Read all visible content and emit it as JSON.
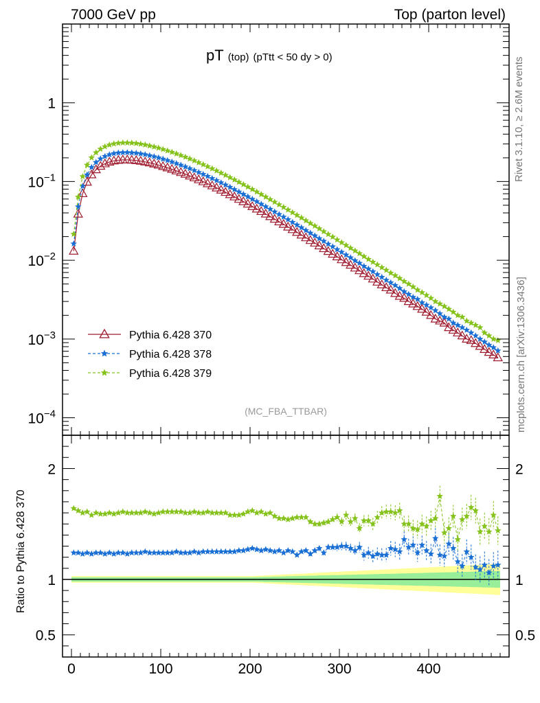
{
  "header": {
    "left": "7000 GeV pp",
    "right": "Top (parton level)"
  },
  "title": {
    "main": "pT",
    "sub1": "(top)",
    "sub2": "(pTtt < 50 dy > 0)"
  },
  "side_labels": {
    "rivet": "Rivet 3.1.10, ≥ 2.6M events",
    "mcplots": "mcplots.cern.ch [arXiv:1306.3436]"
  },
  "watermark": "(MC_FBA_TTBAR)",
  "ratio_ylabel": "Ratio to Pythia 6.428 370",
  "colors": {
    "s370": "#9e1a2e",
    "s378": "#1a6fd4",
    "s379": "#86c21c",
    "band_inner": "#99ee99",
    "band_outer": "#ffff99"
  },
  "chart_data": [
    {
      "type": "line",
      "panel": "main",
      "yscale": "log",
      "xlim": [
        -10,
        490
      ],
      "ylim": [
        6e-05,
        10
      ],
      "y_ticks": [
        "1",
        "10^-1",
        "10^-2",
        "10^-3",
        "10^-4"
      ],
      "legend_position": "lower-left",
      "x": [
        2.5,
        7.5,
        12.5,
        17.5,
        22.5,
        27.5,
        32.5,
        37.5,
        42.5,
        47.5,
        52.5,
        57.5,
        62.5,
        67.5,
        72.5,
        77.5,
        82.5,
        87.5,
        92.5,
        97.5,
        102.5,
        107.5,
        112.5,
        117.5,
        122.5,
        127.5,
        132.5,
        137.5,
        142.5,
        147.5,
        152.5,
        157.5,
        162.5,
        167.5,
        172.5,
        177.5,
        182.5,
        187.5,
        192.5,
        197.5,
        202.5,
        207.5,
        212.5,
        217.5,
        222.5,
        227.5,
        232.5,
        237.5,
        242.5,
        247.5,
        252.5,
        257.5,
        262.5,
        267.5,
        272.5,
        277.5,
        282.5,
        287.5,
        292.5,
        297.5,
        302.5,
        307.5,
        312.5,
        317.5,
        322.5,
        327.5,
        332.5,
        337.5,
        342.5,
        347.5,
        352.5,
        357.5,
        362.5,
        367.5,
        372.5,
        377.5,
        382.5,
        387.5,
        392.5,
        397.5,
        402.5,
        407.5,
        412.5,
        417.5,
        422.5,
        427.5,
        432.5,
        437.5,
        442.5,
        447.5,
        452.5,
        457.5,
        462.5,
        467.5,
        472.5,
        477.5
      ],
      "series": [
        {
          "name": "Pythia 6.428 370",
          "marker": "triangle-open",
          "linestyle": "solid",
          "values": [
            0.0131,
            0.0387,
            0.0704,
            0.0985,
            0.1222,
            0.1416,
            0.1569,
            0.1686,
            0.1772,
            0.1833,
            0.1868,
            0.1886,
            0.1888,
            0.1876,
            0.1854,
            0.1819,
            0.1778,
            0.1729,
            0.1677,
            0.162,
            0.1559,
            0.1497,
            0.1434,
            0.1369,
            0.1306,
            0.1243,
            0.118,
            0.1118,
            0.1057,
            0.0998,
            0.0941,
            0.0885,
            0.0832,
            0.0781,
            0.0731,
            0.0684,
            0.064,
            0.0597,
            0.0557,
            0.0519,
            0.0483,
            0.0449,
            0.0418,
            0.0388,
            0.036,
            0.0334,
            0.0309,
            0.0287,
            0.0265,
            0.0246,
            0.0227,
            0.021,
            0.0194,
            0.0179,
            0.0166,
            0.0153,
            0.0141,
            0.013,
            0.012,
            0.0111,
            0.0102,
            0.0094,
            0.0087,
            0.008,
            0.0074,
            0.0068,
            0.0063,
            0.0058,
            0.0053,
            0.0049,
            0.0045,
            0.0042,
            0.0038,
            0.0035,
            0.0033,
            0.003,
            0.0028,
            0.0026,
            0.0024,
            0.0022,
            0.002,
            0.0018,
            0.0017,
            0.0016,
            0.0014,
            0.0013,
            0.0012,
            0.0011,
            0.001,
            0.00096,
            0.00088,
            0.00081,
            0.00074,
            0.00068,
            0.00063,
            0.00058
          ]
        },
        {
          "name": "Pythia 6.428 378",
          "marker": "star",
          "linestyle": "dashed",
          "values": [
            0.0162,
            0.0479,
            0.0872,
            0.122,
            0.1514,
            0.1754,
            0.1944,
            0.2089,
            0.2195,
            0.227,
            0.2314,
            0.2336,
            0.2339,
            0.2324,
            0.2297,
            0.2254,
            0.2202,
            0.2142,
            0.2077,
            0.2006,
            0.1931,
            0.1854,
            0.1776,
            0.1696,
            0.1618,
            0.154,
            0.1462,
            0.1385,
            0.1309,
            0.1236,
            0.1166,
            0.1096,
            0.1031,
            0.0967,
            0.0906,
            0.0848,
            0.0792,
            0.074,
            0.069,
            0.0643,
            0.0598,
            0.0557,
            0.0517,
            0.048,
            0.0446,
            0.0413,
            0.0383,
            0.0355,
            0.0329,
            0.0304,
            0.0281,
            0.026,
            0.024,
            0.0222,
            0.0205,
            0.0189,
            0.0175,
            0.0161,
            0.0149,
            0.0137,
            0.0127,
            0.0117,
            0.0108,
            0.0099,
            0.0092,
            0.0084,
            0.0078,
            0.0072,
            0.0066,
            0.0061,
            0.0056,
            0.0052,
            0.0048,
            0.0044,
            0.004,
            0.0037,
            0.0034,
            0.0032,
            0.0029,
            0.0027,
            0.0025,
            0.0023,
            0.0021,
            0.0019,
            0.0018,
            0.0016,
            0.0015,
            0.0014,
            0.0013,
            0.0012,
            0.0011,
            0.001,
            0.00092,
            0.00084,
            0.00078,
            0.00071
          ]
        },
        {
          "name": "Pythia 6.428 379",
          "marker": "star",
          "linestyle": "dashed",
          "values": [
            0.0215,
            0.0637,
            0.1159,
            0.1621,
            0.2011,
            0.2331,
            0.2582,
            0.2775,
            0.2917,
            0.3017,
            0.3075,
            0.3104,
            0.3107,
            0.3087,
            0.3051,
            0.2994,
            0.2926,
            0.2846,
            0.2759,
            0.2665,
            0.2565,
            0.2463,
            0.2359,
            0.2254,
            0.215,
            0.2046,
            0.1942,
            0.184,
            0.174,
            0.1643,
            0.1548,
            0.1457,
            0.137,
            0.1285,
            0.1204,
            0.1126,
            0.1053,
            0.0983,
            0.0917,
            0.0854,
            0.0795,
            0.074,
            0.0687,
            0.0638,
            0.0592,
            0.0549,
            0.0509,
            0.0472,
            0.0437,
            0.0404,
            0.0374,
            0.0346,
            0.0319,
            0.0295,
            0.0273,
            0.0252,
            0.0232,
            0.0214,
            0.0198,
            0.0182,
            0.0168,
            0.0155,
            0.0143,
            0.0132,
            0.0122,
            0.0112,
            0.0103,
            0.0095,
            0.0088,
            0.0081,
            0.0075,
            0.0069,
            0.0064,
            0.0059,
            0.0054,
            0.005,
            0.0046,
            0.0042,
            0.0039,
            0.0036,
            0.0033,
            0.003,
            0.0028,
            0.0026,
            0.0024,
            0.0022,
            0.002,
            0.0019,
            0.0017,
            0.0016,
            0.0015,
            0.0014,
            0.0012,
            0.0011,
            0.001,
            0.00096
          ]
        }
      ]
    },
    {
      "type": "line",
      "panel": "ratio",
      "xlim": [
        -10,
        490
      ],
      "ylim": [
        0.3,
        2.3
      ],
      "ylabel": "Ratio to Pythia 6.428 370",
      "x_ticks": [
        0,
        100,
        200,
        300,
        400
      ],
      "y_ticks": [
        0.5,
        1,
        2
      ],
      "reference_line": 1,
      "uncertainty_band_inner_halfwidth": [
        0.02,
        0.02,
        0.02,
        0.02,
        0.02,
        0.02,
        0.02,
        0.02,
        0.02,
        0.02,
        0.02,
        0.02,
        0.02,
        0.02,
        0.02,
        0.02,
        0.02,
        0.02,
        0.02,
        0.02,
        0.02,
        0.02,
        0.02,
        0.02,
        0.02,
        0.02,
        0.02,
        0.02,
        0.02,
        0.02,
        0.02,
        0.02,
        0.02,
        0.02,
        0.02,
        0.02,
        0.02,
        0.02,
        0.02,
        0.02,
        0.02,
        0.021,
        0.022,
        0.023,
        0.024,
        0.025,
        0.026,
        0.027,
        0.028,
        0.029,
        0.03,
        0.031,
        0.032,
        0.033,
        0.034,
        0.035,
        0.036,
        0.037,
        0.038,
        0.039,
        0.04,
        0.041,
        0.042,
        0.043,
        0.044,
        0.045,
        0.046,
        0.047,
        0.048,
        0.049,
        0.05,
        0.051,
        0.052,
        0.053,
        0.054,
        0.055,
        0.056,
        0.057,
        0.058,
        0.059,
        0.06,
        0.061,
        0.062,
        0.063,
        0.064,
        0.065,
        0.066,
        0.067,
        0.068,
        0.069,
        0.07,
        0.071,
        0.072,
        0.073,
        0.074,
        0.075
      ],
      "uncertainty_band_outer_halfwidth": [
        0.03,
        0.03,
        0.03,
        0.03,
        0.03,
        0.03,
        0.03,
        0.03,
        0.03,
        0.03,
        0.03,
        0.03,
        0.03,
        0.03,
        0.03,
        0.03,
        0.03,
        0.03,
        0.03,
        0.03,
        0.03,
        0.03,
        0.03,
        0.03,
        0.03,
        0.03,
        0.03,
        0.03,
        0.03,
        0.03,
        0.03,
        0.03,
        0.03,
        0.03,
        0.03,
        0.03,
        0.03,
        0.03,
        0.03,
        0.03,
        0.03,
        0.032,
        0.034,
        0.036,
        0.038,
        0.04,
        0.042,
        0.044,
        0.046,
        0.048,
        0.05,
        0.052,
        0.054,
        0.056,
        0.058,
        0.06,
        0.062,
        0.064,
        0.066,
        0.068,
        0.07,
        0.072,
        0.074,
        0.076,
        0.078,
        0.08,
        0.082,
        0.084,
        0.086,
        0.088,
        0.09,
        0.092,
        0.094,
        0.096,
        0.098,
        0.1,
        0.102,
        0.104,
        0.106,
        0.108,
        0.11,
        0.112,
        0.114,
        0.116,
        0.118,
        0.12,
        0.122,
        0.124,
        0.126,
        0.128,
        0.13,
        0.132,
        0.134,
        0.136,
        0.138,
        0.14,
        0.142,
        0.144,
        0.146,
        0.148,
        0.15
      ],
      "series": [
        {
          "name": "Pythia 6.428 378",
          "values": [
            1.24,
            1.24,
            1.23,
            1.24,
            1.23,
            1.24,
            1.24,
            1.23,
            1.24,
            1.23,
            1.24,
            1.24,
            1.23,
            1.24,
            1.24,
            1.24,
            1.25,
            1.24,
            1.24,
            1.24,
            1.24,
            1.24,
            1.24,
            1.25,
            1.24,
            1.24,
            1.24,
            1.25,
            1.24,
            1.25,
            1.25,
            1.25,
            1.25,
            1.25,
            1.25,
            1.25,
            1.25,
            1.26,
            1.26,
            1.27,
            1.28,
            1.27,
            1.26,
            1.27,
            1.26,
            1.25,
            1.26,
            1.24,
            1.26,
            1.25,
            1.22,
            1.25,
            1.26,
            1.23,
            1.26,
            1.28,
            1.24,
            1.29,
            1.29,
            1.29,
            1.3,
            1.3,
            1.28,
            1.26,
            1.29,
            1.22,
            1.24,
            1.21,
            1.23,
            1.22,
            1.22,
            1.28,
            1.27,
            1.25,
            1.36,
            1.29,
            1.31,
            1.24,
            1.31,
            1.26,
            1.23,
            1.37,
            1.22,
            1.21,
            1.32,
            1.28,
            1.16,
            1.12,
            1.25,
            1.2,
            1.11,
            1.09,
            1.13,
            1.06,
            1.12,
            1.13
          ]
        },
        {
          "name": "Pythia 6.428 379",
          "values": [
            1.64,
            1.62,
            1.6,
            1.61,
            1.58,
            1.6,
            1.59,
            1.59,
            1.6,
            1.59,
            1.6,
            1.61,
            1.6,
            1.6,
            1.6,
            1.6,
            1.61,
            1.6,
            1.59,
            1.6,
            1.61,
            1.61,
            1.61,
            1.61,
            1.61,
            1.6,
            1.6,
            1.61,
            1.6,
            1.6,
            1.61,
            1.6,
            1.6,
            1.6,
            1.6,
            1.58,
            1.58,
            1.58,
            1.59,
            1.61,
            1.62,
            1.6,
            1.61,
            1.59,
            1.6,
            1.57,
            1.55,
            1.55,
            1.54,
            1.55,
            1.56,
            1.56,
            1.56,
            1.52,
            1.5,
            1.5,
            1.51,
            1.52,
            1.54,
            1.56,
            1.52,
            1.58,
            1.52,
            1.55,
            1.46,
            1.53,
            1.53,
            1.5,
            1.56,
            1.6,
            1.61,
            1.61,
            1.6,
            1.62,
            1.5,
            1.5,
            1.46,
            1.45,
            1.5,
            1.48,
            1.53,
            1.55,
            1.75,
            1.42,
            1.46,
            1.57,
            1.36,
            1.54,
            1.57,
            1.65,
            1.62,
            1.43,
            1.48,
            1.43,
            1.58,
            1.44
          ]
        }
      ]
    }
  ]
}
